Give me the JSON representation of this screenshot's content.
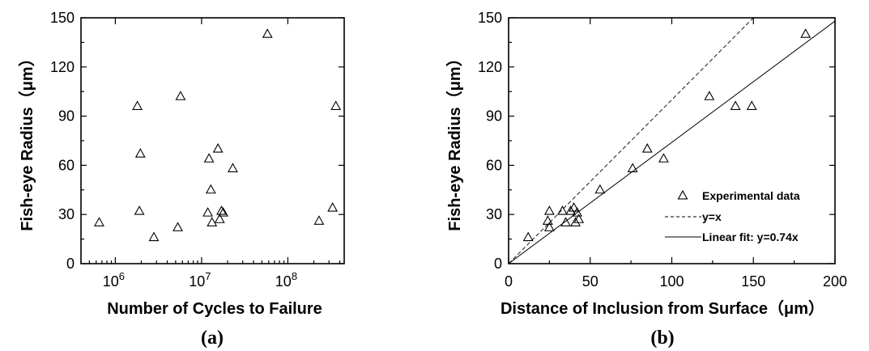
{
  "chart_data": [
    {
      "panel_label": "(a)",
      "type": "scatter",
      "xlabel": "Number of Cycles to Failure",
      "ylabel": "Fish-eye Radius（μm）",
      "xscale": "log",
      "xlim": [
        400000,
        450000000
      ],
      "ylim": [
        0,
        150
      ],
      "x_ticks": [
        1000000,
        10000000,
        100000000
      ],
      "x_tick_labels": [
        {
          "base": "10",
          "exp": "6"
        },
        {
          "base": "10",
          "exp": "7"
        },
        {
          "base": "10",
          "exp": "8"
        }
      ],
      "y_ticks": [
        0,
        30,
        60,
        90,
        120,
        150
      ],
      "y_tick_labels": [
        "0",
        "30",
        "60",
        "90",
        "120",
        "150"
      ],
      "marker": "open-triangle",
      "points": [
        {
          "x": 650000,
          "y": 25
        },
        {
          "x": 1800000,
          "y": 96
        },
        {
          "x": 1900000,
          "y": 32
        },
        {
          "x": 1950000,
          "y": 67
        },
        {
          "x": 2800000,
          "y": 16
        },
        {
          "x": 5300000,
          "y": 22
        },
        {
          "x": 5700000,
          "y": 102
        },
        {
          "x": 11800000,
          "y": 31
        },
        {
          "x": 12200000,
          "y": 64
        },
        {
          "x": 12800000,
          "y": 45
        },
        {
          "x": 13200000,
          "y": 25
        },
        {
          "x": 15500000,
          "y": 70
        },
        {
          "x": 16200000,
          "y": 27
        },
        {
          "x": 17000000,
          "y": 32
        },
        {
          "x": 17800000,
          "y": 31
        },
        {
          "x": 23000000,
          "y": 58
        },
        {
          "x": 58000000,
          "y": 140
        },
        {
          "x": 230000000,
          "y": 26
        },
        {
          "x": 330000000,
          "y": 34
        },
        {
          "x": 360000000,
          "y": 96
        }
      ]
    },
    {
      "panel_label": "(b)",
      "type": "scatter",
      "xlabel": "Distance of Inclusion from Surface（μm）",
      "ylabel": "Fish-eye Radius（μm）",
      "xlim": [
        0,
        200
      ],
      "ylim": [
        0,
        150
      ],
      "x_ticks": [
        0,
        50,
        100,
        150,
        200
      ],
      "x_tick_labels": [
        "0",
        "50",
        "100",
        "150",
        "200"
      ],
      "y_ticks": [
        0,
        30,
        60,
        90,
        120,
        150
      ],
      "y_tick_labels": [
        "0",
        "30",
        "60",
        "90",
        "120",
        "150"
      ],
      "legend_position": "bottom-right",
      "series": [
        {
          "name": "Experimental data",
          "kind": "scatter",
          "marker": "open-triangle",
          "points": [
            {
              "x": 12,
              "y": 16
            },
            {
              "x": 24,
              "y": 26
            },
            {
              "x": 25,
              "y": 22
            },
            {
              "x": 25,
              "y": 32
            },
            {
              "x": 33,
              "y": 32
            },
            {
              "x": 35,
              "y": 25
            },
            {
              "x": 38,
              "y": 32
            },
            {
              "x": 40,
              "y": 34
            },
            {
              "x": 41,
              "y": 25
            },
            {
              "x": 42,
              "y": 31
            },
            {
              "x": 43,
              "y": 27
            },
            {
              "x": 56,
              "y": 45
            },
            {
              "x": 76,
              "y": 58
            },
            {
              "x": 85,
              "y": 70
            },
            {
              "x": 95,
              "y": 64
            },
            {
              "x": 123,
              "y": 102
            },
            {
              "x": 139,
              "y": 96
            },
            {
              "x": 149,
              "y": 96
            },
            {
              "x": 182,
              "y": 140
            }
          ]
        },
        {
          "name": "y=x",
          "kind": "line",
          "style": "dashed",
          "slope": 1,
          "x_range": [
            0,
            150
          ]
        },
        {
          "name": "Linear fit: y=0.74x",
          "kind": "line",
          "style": "solid",
          "slope": 0.74,
          "x_range": [
            0,
            200
          ]
        }
      ]
    }
  ]
}
